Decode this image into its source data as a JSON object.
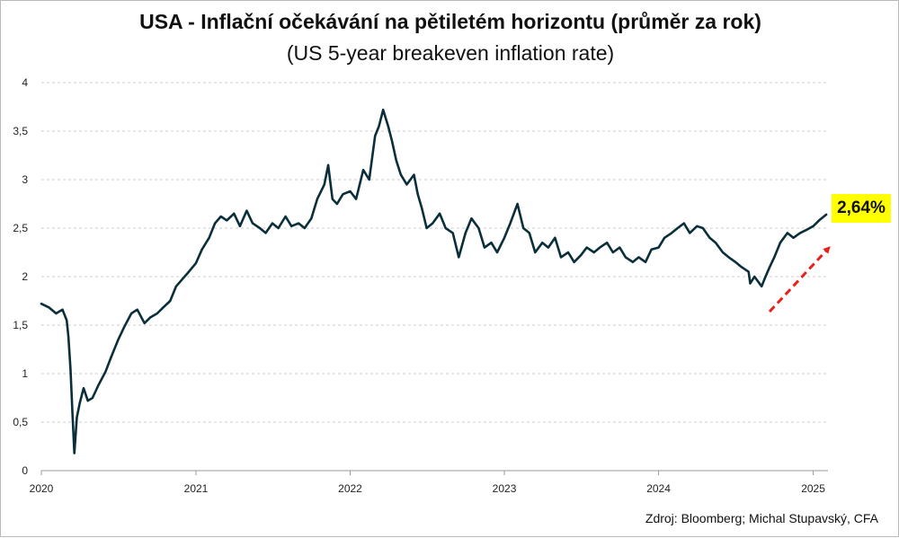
{
  "title": "USA - Inflační očekávání na pětiletém horizontu (průměr za rok)",
  "subtitle": "(US 5-year breakeven inflation rate)",
  "source": "Zdroj: Bloomberg; Michal Stupavský, CFA",
  "callout": "2,64%",
  "colors": {
    "line": "#0b2f3a",
    "arrow": "#e8211a",
    "callout_bg": "#ffff00",
    "grid": "#cccccc"
  },
  "chart_data": {
    "type": "line",
    "title": "USA - Inflační očekávání na pětiletém horizontu (průměr za rok)",
    "subtitle": "(US 5-year breakeven inflation rate)",
    "xlabel": "",
    "ylabel": "",
    "xlim": [
      "2020-01-01",
      "2025-02-05"
    ],
    "ylim": [
      0,
      4
    ],
    "y_ticks": [
      "0",
      "0,5",
      "1",
      "1,5",
      "2",
      "2,5",
      "3",
      "3,5",
      "4"
    ],
    "x_ticks": [
      "2020",
      "2021",
      "2022",
      "2023",
      "2024",
      "2025"
    ],
    "grid": "horizontal dashed",
    "legend": "none",
    "annotation": {
      "text": "2,64%",
      "value": 2.64,
      "arrow": "red dashed, upward trend late 2024 - 2025"
    },
    "x": [
      "2020-01-01",
      "2020-01-20",
      "2020-02-05",
      "2020-02-20",
      "2020-03-01",
      "2020-03-05",
      "2020-03-10",
      "2020-03-15",
      "2020-03-19",
      "2020-03-25",
      "2020-04-01",
      "2020-04-10",
      "2020-04-20",
      "2020-05-01",
      "2020-05-15",
      "2020-06-01",
      "2020-06-15",
      "2020-07-01",
      "2020-07-15",
      "2020-08-01",
      "2020-08-15",
      "2020-09-01",
      "2020-09-15",
      "2020-10-01",
      "2020-10-15",
      "2020-11-01",
      "2020-11-15",
      "2020-12-01",
      "2020-12-15",
      "2021-01-01",
      "2021-01-15",
      "2021-02-01",
      "2021-02-15",
      "2021-03-01",
      "2021-03-15",
      "2021-04-01",
      "2021-04-15",
      "2021-05-01",
      "2021-05-15",
      "2021-06-01",
      "2021-06-15",
      "2021-07-01",
      "2021-07-15",
      "2021-08-01",
      "2021-08-15",
      "2021-09-01",
      "2021-09-15",
      "2021-10-01",
      "2021-10-15",
      "2021-11-01",
      "2021-11-10",
      "2021-11-20",
      "2021-12-01",
      "2021-12-15",
      "2022-01-01",
      "2022-01-15",
      "2022-02-01",
      "2022-02-15",
      "2022-03-01",
      "2022-03-10",
      "2022-03-20",
      "2022-03-25",
      "2022-04-01",
      "2022-04-10",
      "2022-04-20",
      "2022-05-01",
      "2022-05-15",
      "2022-06-01",
      "2022-06-10",
      "2022-06-20",
      "2022-07-01",
      "2022-07-15",
      "2022-08-01",
      "2022-08-15",
      "2022-09-01",
      "2022-09-15",
      "2022-10-01",
      "2022-10-15",
      "2022-11-01",
      "2022-11-15",
      "2022-12-01",
      "2022-12-15",
      "2023-01-01",
      "2023-01-15",
      "2023-02-01",
      "2023-02-15",
      "2023-03-01",
      "2023-03-15",
      "2023-04-01",
      "2023-04-15",
      "2023-05-01",
      "2023-05-15",
      "2023-06-01",
      "2023-06-15",
      "2023-07-01",
      "2023-07-15",
      "2023-08-01",
      "2023-08-15",
      "2023-09-01",
      "2023-09-15",
      "2023-10-01",
      "2023-10-15",
      "2023-11-01",
      "2023-11-15",
      "2023-12-01",
      "2023-12-15",
      "2024-01-01",
      "2024-01-15",
      "2024-02-01",
      "2024-02-15",
      "2024-03-01",
      "2024-03-15",
      "2024-04-01",
      "2024-04-15",
      "2024-05-01",
      "2024-05-15",
      "2024-06-01",
      "2024-06-15",
      "2024-07-01",
      "2024-07-15",
      "2024-08-01",
      "2024-08-05",
      "2024-08-15",
      "2024-09-01",
      "2024-09-10",
      "2024-09-20",
      "2024-10-01",
      "2024-10-15",
      "2024-11-01",
      "2024-11-15",
      "2024-12-01",
      "2024-12-15",
      "2025-01-01",
      "2025-01-15",
      "2025-02-01"
    ],
    "series": [
      {
        "values": [
          1.72,
          1.68,
          1.62,
          1.66,
          1.55,
          1.38,
          1.05,
          0.55,
          0.18,
          0.55,
          0.7,
          0.85,
          0.72,
          0.75,
          0.88,
          1.02,
          1.18,
          1.35,
          1.48,
          1.62,
          1.66,
          1.52,
          1.58,
          1.62,
          1.68,
          1.75,
          1.9,
          1.98,
          2.05,
          2.14,
          2.28,
          2.4,
          2.55,
          2.62,
          2.58,
          2.65,
          2.52,
          2.68,
          2.55,
          2.5,
          2.45,
          2.55,
          2.5,
          2.62,
          2.52,
          2.55,
          2.5,
          2.6,
          2.8,
          2.95,
          3.15,
          2.8,
          2.75,
          2.85,
          2.88,
          2.8,
          3.1,
          3.0,
          3.45,
          3.55,
          3.72,
          3.65,
          3.55,
          3.4,
          3.2,
          3.05,
          2.95,
          3.05,
          2.85,
          2.7,
          2.5,
          2.55,
          2.65,
          2.5,
          2.45,
          2.2,
          2.45,
          2.6,
          2.5,
          2.3,
          2.35,
          2.25,
          2.4,
          2.55,
          2.75,
          2.5,
          2.45,
          2.25,
          2.35,
          2.3,
          2.4,
          2.2,
          2.25,
          2.15,
          2.22,
          2.3,
          2.25,
          2.3,
          2.35,
          2.25,
          2.3,
          2.2,
          2.15,
          2.2,
          2.15,
          2.28,
          2.3,
          2.4,
          2.45,
          2.5,
          2.55,
          2.45,
          2.52,
          2.5,
          2.4,
          2.35,
          2.25,
          2.2,
          2.15,
          2.1,
          2.05,
          1.93,
          2.0,
          1.9,
          2.0,
          2.1,
          2.2,
          2.35,
          2.45,
          2.4,
          2.45,
          2.48,
          2.52,
          2.58,
          2.64
        ]
      }
    ]
  }
}
